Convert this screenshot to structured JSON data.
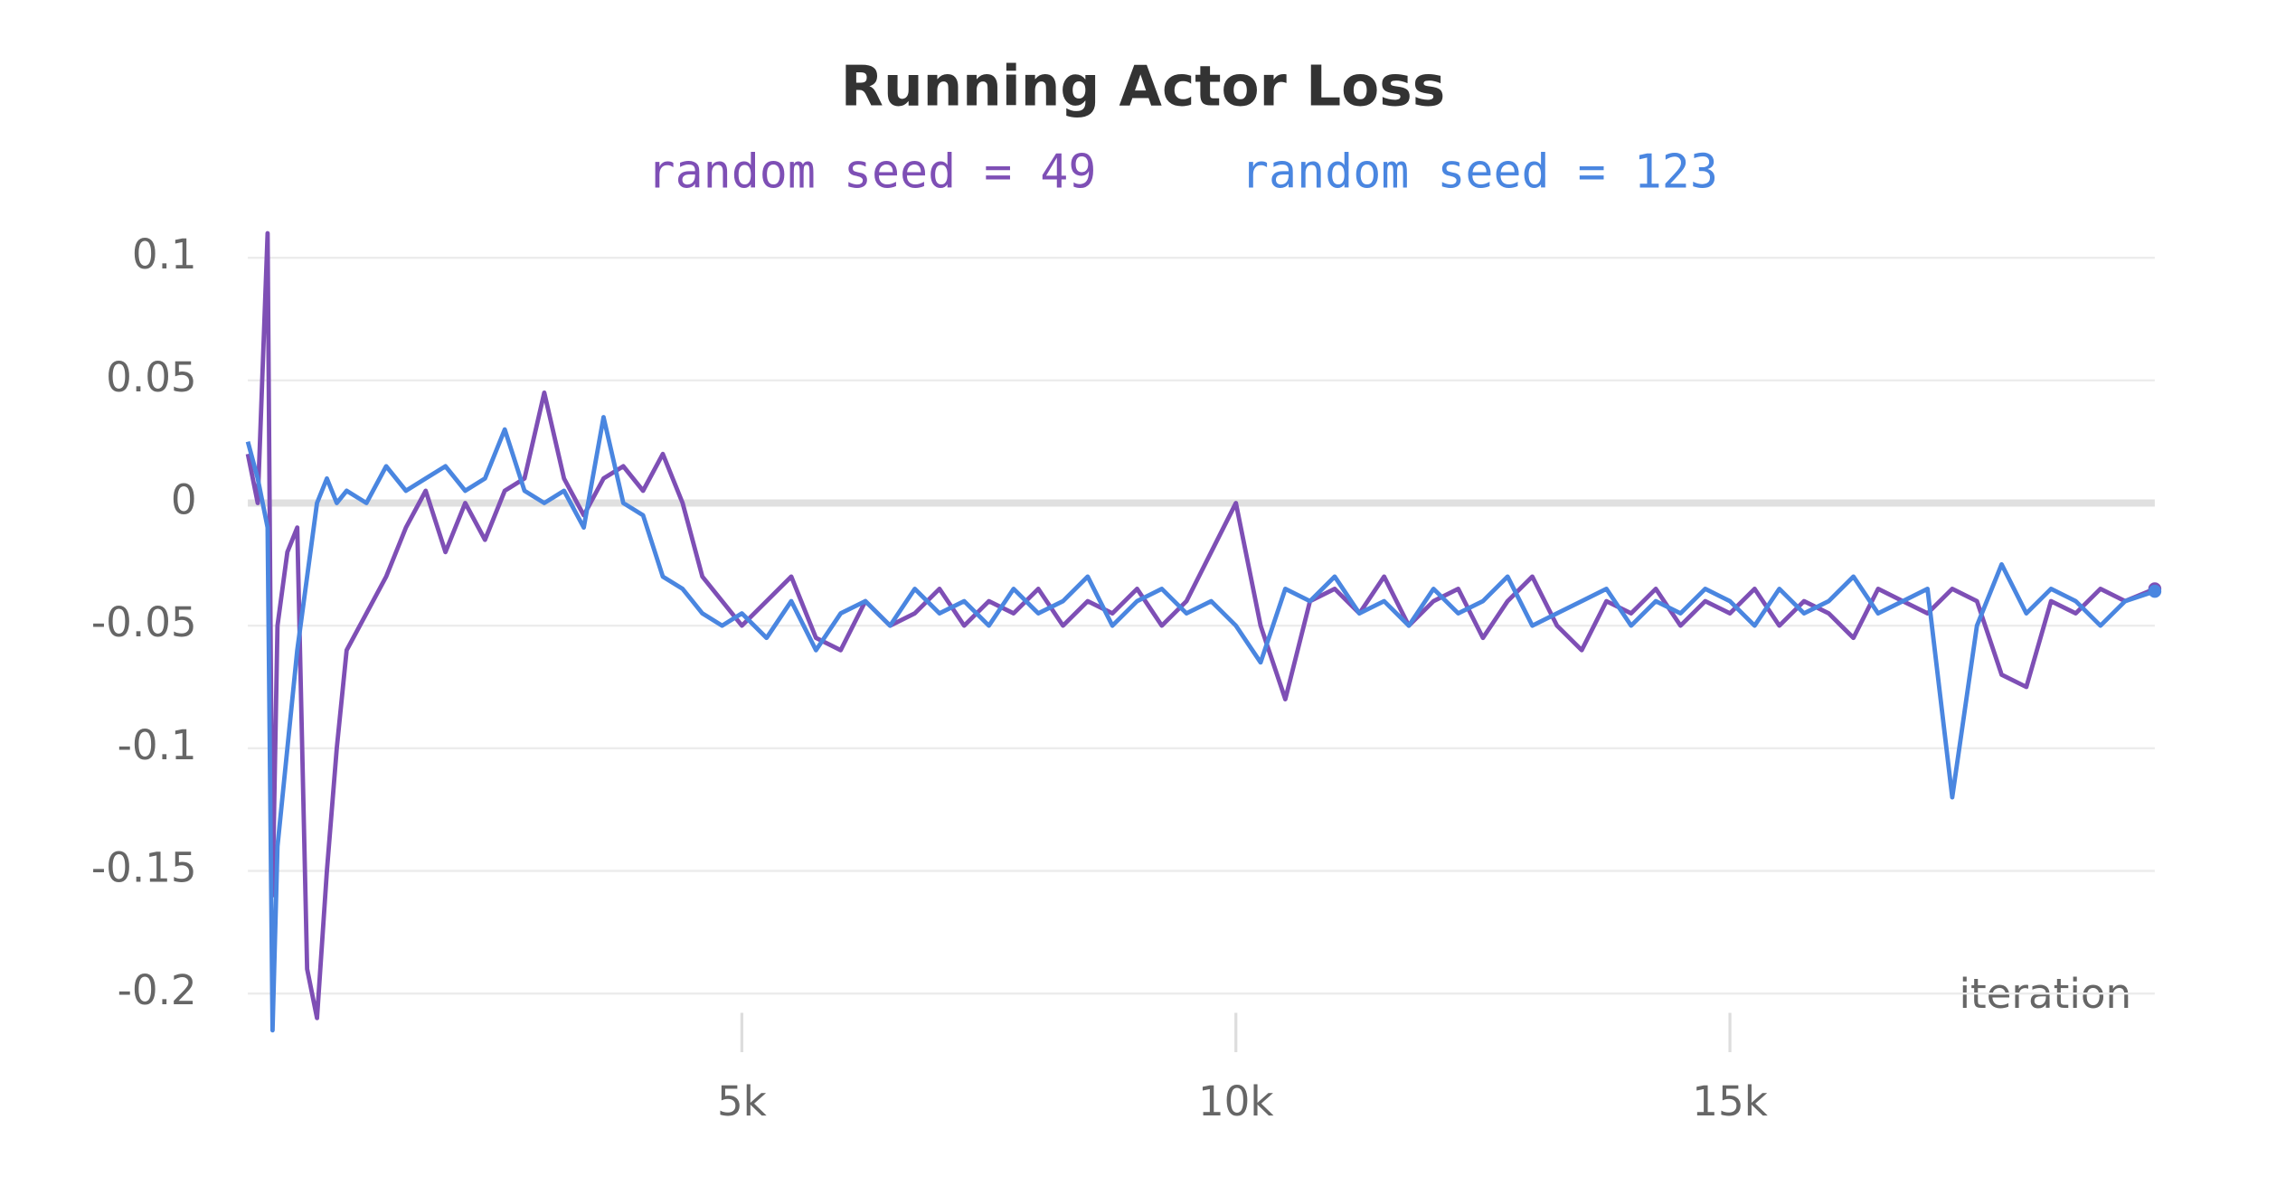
{
  "chart_data": {
    "type": "line",
    "title": "Running Actor Loss",
    "x_label": "iteration",
    "x": [
      0,
      100,
      200,
      250,
      300,
      400,
      500,
      600,
      700,
      800,
      900,
      1000,
      1200,
      1400,
      1600,
      1800,
      2000,
      2200,
      2400,
      2600,
      2800,
      3000,
      3200,
      3400,
      3600,
      3800,
      4000,
      4200,
      4400,
      4600,
      4800,
      5000,
      5250,
      5500,
      5750,
      6000,
      6250,
      6500,
      6750,
      7000,
      7250,
      7500,
      7750,
      8000,
      8250,
      8500,
      8750,
      9000,
      9250,
      9500,
      9750,
      10000,
      10250,
      10500,
      10750,
      11000,
      11250,
      11500,
      11750,
      12000,
      12250,
      12500,
      12750,
      13000,
      13250,
      13500,
      13750,
      14000,
      14250,
      14500,
      14750,
      15000,
      15250,
      15500,
      15750,
      16000,
      16250,
      16500,
      16750,
      17000,
      17250,
      17500,
      17750,
      18000,
      18250,
      18500,
      18750,
      19000,
      19300
    ],
    "series": [
      {
        "name": "random seed = 49",
        "color": "#7e4fb5",
        "values": [
          0.02,
          0.0,
          0.11,
          -0.16,
          -0.05,
          -0.02,
          -0.01,
          -0.19,
          -0.21,
          -0.15,
          -0.1,
          -0.06,
          -0.045,
          -0.03,
          -0.01,
          0.005,
          -0.02,
          0.0,
          -0.015,
          0.005,
          0.01,
          0.045,
          0.01,
          -0.005,
          0.01,
          0.015,
          0.005,
          0.02,
          0.0,
          -0.03,
          -0.04,
          -0.05,
          -0.04,
          -0.03,
          -0.055,
          -0.06,
          -0.04,
          -0.05,
          -0.045,
          -0.035,
          -0.05,
          -0.04,
          -0.045,
          -0.035,
          -0.05,
          -0.04,
          -0.045,
          -0.035,
          -0.05,
          -0.04,
          -0.02,
          0.0,
          -0.05,
          -0.08,
          -0.04,
          -0.035,
          -0.045,
          -0.03,
          -0.05,
          -0.04,
          -0.035,
          -0.055,
          -0.04,
          -0.03,
          -0.05,
          -0.06,
          -0.04,
          -0.045,
          -0.035,
          -0.05,
          -0.04,
          -0.045,
          -0.035,
          -0.05,
          -0.04,
          -0.045,
          -0.055,
          -0.035,
          -0.04,
          -0.045,
          -0.035,
          -0.04,
          -0.07,
          -0.075,
          -0.04,
          -0.045,
          -0.035,
          -0.04,
          -0.035
        ]
      },
      {
        "name": "random seed = 123",
        "color": "#4a86e0",
        "values": [
          0.025,
          0.01,
          -0.01,
          -0.215,
          -0.14,
          -0.1,
          -0.06,
          -0.03,
          0.0,
          0.01,
          0.0,
          0.005,
          0.0,
          0.015,
          0.005,
          0.01,
          0.015,
          0.005,
          0.01,
          0.03,
          0.005,
          0.0,
          0.005,
          -0.01,
          0.035,
          0.0,
          -0.005,
          -0.03,
          -0.035,
          -0.045,
          -0.05,
          -0.045,
          -0.055,
          -0.04,
          -0.06,
          -0.045,
          -0.04,
          -0.05,
          -0.035,
          -0.045,
          -0.04,
          -0.05,
          -0.035,
          -0.045,
          -0.04,
          -0.03,
          -0.05,
          -0.04,
          -0.035,
          -0.045,
          -0.04,
          -0.05,
          -0.065,
          -0.035,
          -0.04,
          -0.03,
          -0.045,
          -0.04,
          -0.05,
          -0.035,
          -0.045,
          -0.04,
          -0.03,
          -0.05,
          -0.045,
          -0.04,
          -0.035,
          -0.05,
          -0.04,
          -0.045,
          -0.035,
          -0.04,
          -0.05,
          -0.035,
          -0.045,
          -0.04,
          -0.03,
          -0.045,
          -0.04,
          -0.035,
          -0.12,
          -0.05,
          -0.025,
          -0.045,
          -0.035,
          -0.04,
          -0.05,
          -0.04,
          -0.036
        ]
      }
    ],
    "xlim": [
      0,
      19300
    ],
    "xticks": [
      {
        "value": 5000,
        "label": "5k"
      },
      {
        "value": 10000,
        "label": "10k"
      },
      {
        "value": 15000,
        "label": "15k"
      }
    ],
    "ylim": [
      -0.215,
      0.113
    ],
    "yticks": [
      0.1,
      0.05,
      0,
      -0.05,
      -0.1,
      -0.15,
      -0.2
    ],
    "grid": true
  }
}
